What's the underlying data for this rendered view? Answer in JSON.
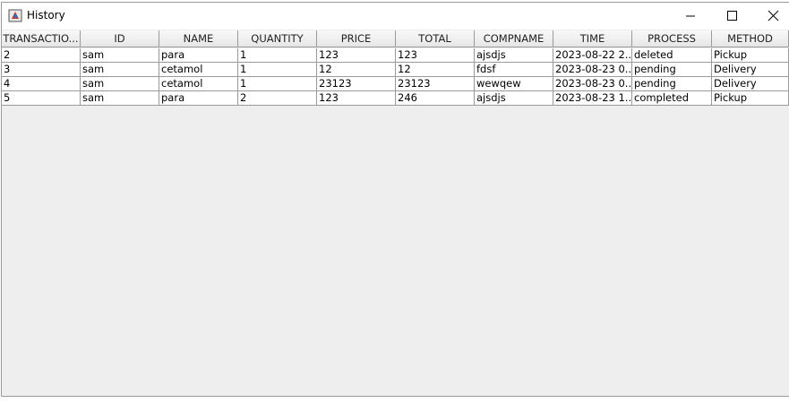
{
  "window": {
    "title": "History"
  },
  "table": {
    "headers": [
      "TRANSACTIO...",
      "ID",
      "NAME",
      "QUANTITY",
      "PRICE",
      "TOTAL",
      "COMPNAME",
      "TIME",
      "PROCESS",
      "METHOD"
    ],
    "rows": [
      [
        "2",
        "sam",
        "para",
        "1",
        "123",
        "123",
        "ajsdjs",
        "2023-08-22 2...",
        "deleted",
        "Pickup"
      ],
      [
        "3",
        "sam",
        "cetamol",
        "1",
        "12",
        "12",
        "fdsf",
        "2023-08-23 0...",
        "pending",
        "Delivery"
      ],
      [
        "4",
        "sam",
        "cetamol",
        "1",
        "23123",
        "23123",
        "wewqew",
        "2023-08-23 0...",
        "pending",
        "Delivery"
      ],
      [
        "5",
        "sam",
        "para",
        "2",
        "123",
        "246",
        "ajsdjs",
        "2023-08-23 1...",
        "completed",
        "Pickup"
      ]
    ]
  }
}
